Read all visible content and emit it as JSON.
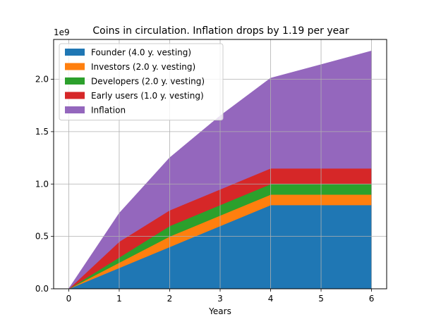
{
  "chart_data": {
    "type": "area",
    "stacked": true,
    "title": "Coins in circulation. Inflation drops by 1.19 per year",
    "xlabel": "Years",
    "ylabel": "",
    "y_offset_label": "1e9",
    "x": [
      0,
      1,
      2,
      3,
      4,
      5,
      6
    ],
    "xlim": [
      -0.3,
      6.3
    ],
    "ylim": [
      0,
      2.38
    ],
    "xticks": [
      0,
      1,
      2,
      3,
      4,
      5,
      6
    ],
    "yticks": [
      0.0,
      0.5,
      1.0,
      1.5,
      2.0
    ],
    "ytick_labels": [
      "0.0",
      "0.5",
      "1.0",
      "1.5",
      "2.0"
    ],
    "grid": true,
    "legend_position": "upper-left",
    "series": [
      {
        "name": "Founder (4.0 y. vesting)",
        "color": "#1f77b4",
        "values": [
          0,
          0.2,
          0.4,
          0.6,
          0.8,
          0.8,
          0.8
        ]
      },
      {
        "name": "Investors (2.0 y. vesting)",
        "color": "#ff7f0e",
        "values": [
          0,
          0.05,
          0.1,
          0.1,
          0.1,
          0.1,
          0.1
        ]
      },
      {
        "name": "Developers (2.0 y. vesting)",
        "color": "#2ca02c",
        "values": [
          0,
          0.05,
          0.1,
          0.1,
          0.1,
          0.1,
          0.1
        ]
      },
      {
        "name": "Early users (1.0 y. vesting)",
        "color": "#d62728",
        "values": [
          0,
          0.15,
          0.15,
          0.15,
          0.15,
          0.15,
          0.15
        ]
      },
      {
        "name": "Inflation",
        "color": "#9467bd",
        "values": [
          0,
          0.27,
          0.5,
          0.7,
          0.86,
          0.99,
          1.12
        ]
      }
    ]
  }
}
